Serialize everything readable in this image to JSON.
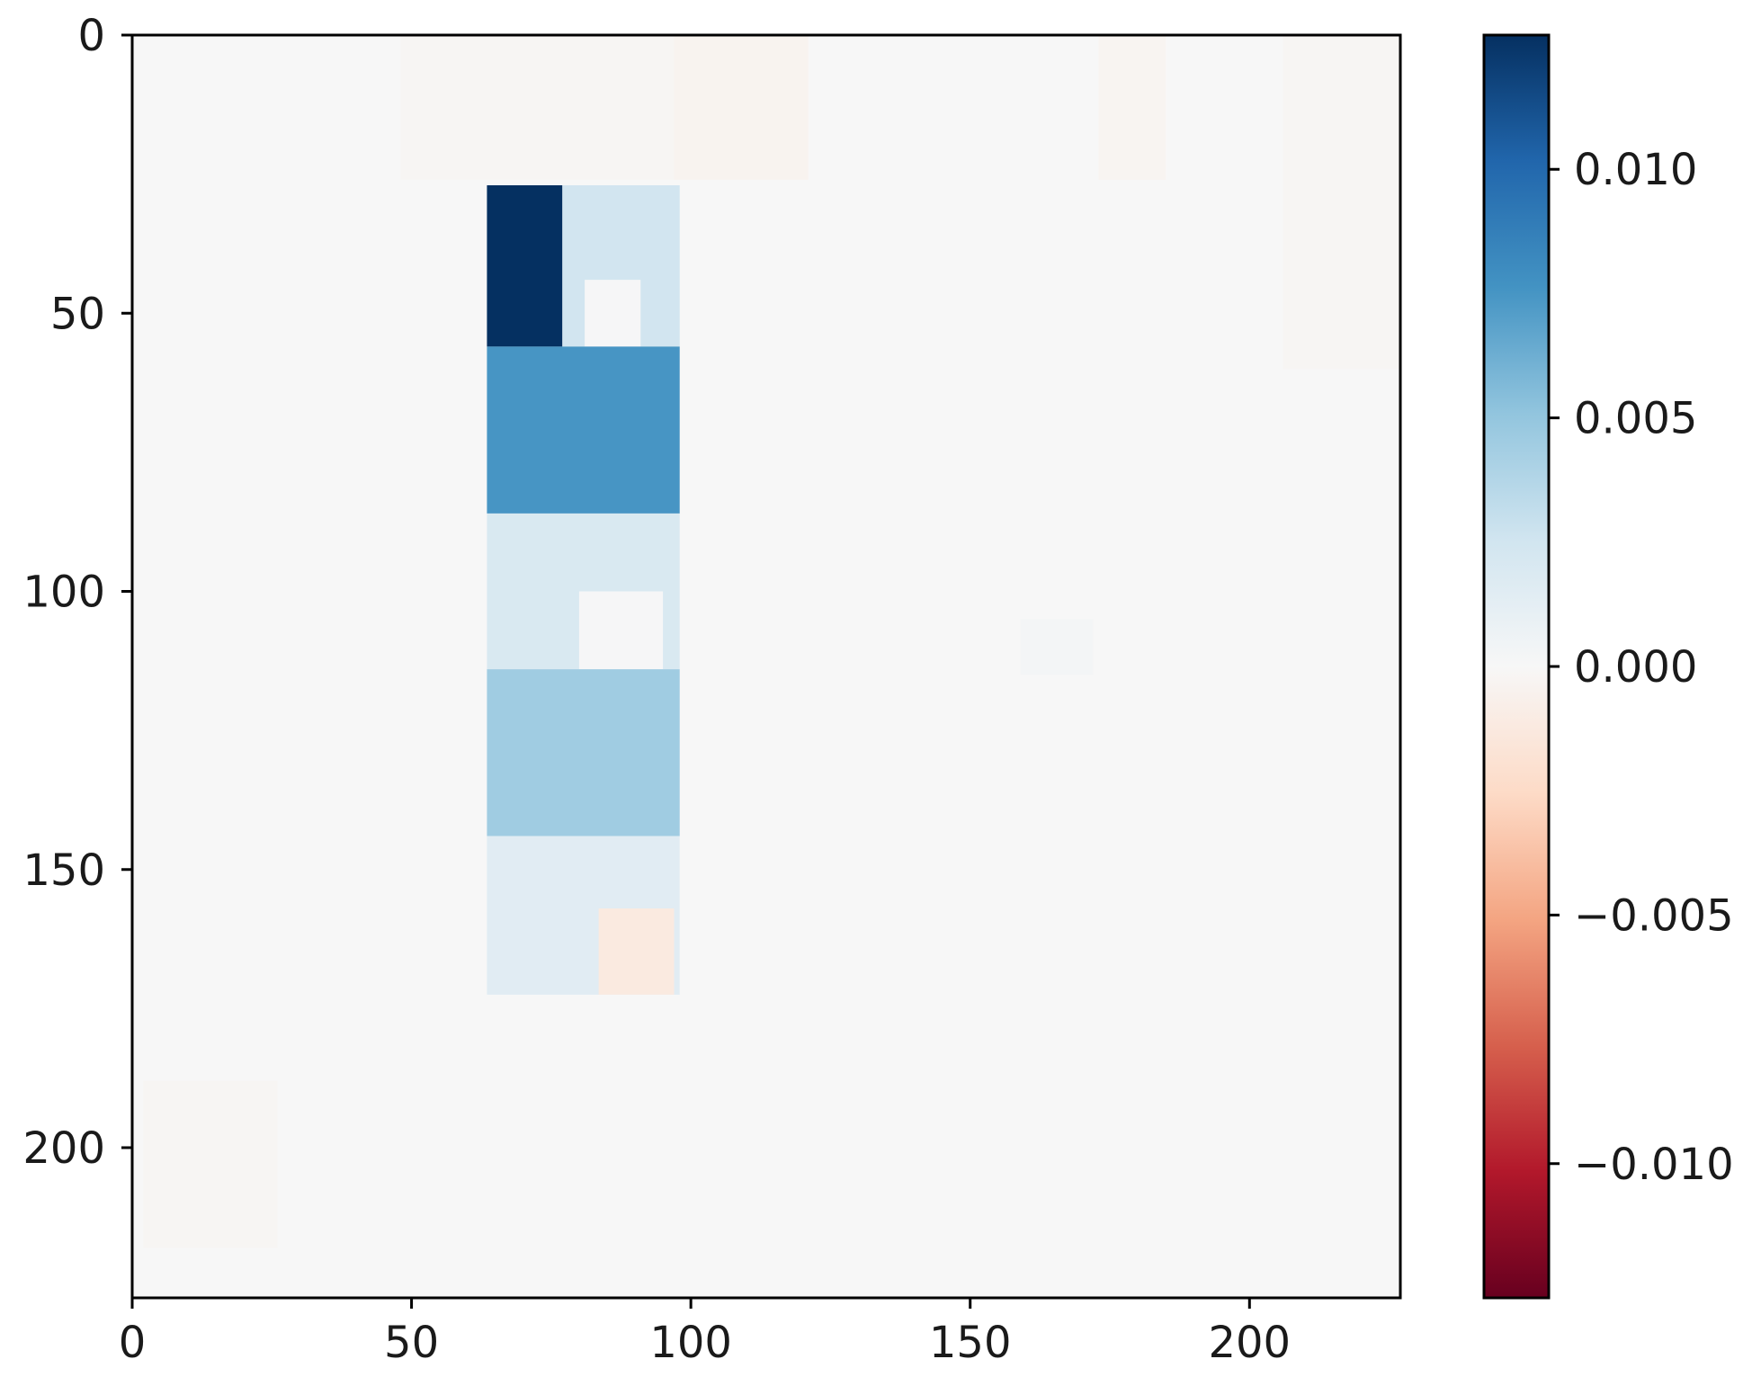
{
  "chart_data": {
    "type": "heatmap",
    "title": "",
    "xlabel": "",
    "ylabel": "",
    "xlim": [
      0,
      227
    ],
    "ylim": [
      227,
      0
    ],
    "x_ticks": [
      "0",
      "50",
      "100",
      "150",
      "200"
    ],
    "y_ticks": [
      "0",
      "50",
      "100",
      "150",
      "200"
    ],
    "background_value": 0.0,
    "colormap": {
      "name": "RdBu",
      "vmin": -0.0127,
      "vmax": 0.0127,
      "stops": [
        "#67001f",
        "#b2182b",
        "#d6604d",
        "#f4a582",
        "#fddbc7",
        "#f7f7f7",
        "#d1e5f0",
        "#92c5de",
        "#4393c3",
        "#2166ac",
        "#053061"
      ]
    },
    "colorbar": {
      "ticks": [
        "−0.010",
        "−0.005",
        "0.000",
        "0.005",
        "0.010"
      ],
      "tick_values": [
        -0.01,
        -0.005,
        0.0,
        0.005,
        0.01
      ]
    },
    "regions": [
      {
        "name": "faint-warm-top-1",
        "x": [
          48,
          97
        ],
        "y": [
          0,
          26
        ],
        "value": -0.0002
      },
      {
        "name": "faint-warm-top-2",
        "x": [
          97,
          121
        ],
        "y": [
          0,
          26
        ],
        "value": -0.0004
      },
      {
        "name": "faint-warm-top-3",
        "x": [
          173,
          185
        ],
        "y": [
          0,
          26
        ],
        "value": -0.0003
      },
      {
        "name": "faint-warm-right",
        "x": [
          206,
          227
        ],
        "y": [
          0,
          60
        ],
        "value": -0.0002
      },
      {
        "name": "faint-warm-bottom-left",
        "x": [
          2,
          26
        ],
        "y": [
          188,
          218
        ],
        "value": -0.0002
      },
      {
        "name": "faint-cool-mid",
        "x": [
          159,
          172
        ],
        "y": [
          105,
          115
        ],
        "value": 0.0003
      },
      {
        "name": "band-1-darkest",
        "x": [
          63.5,
          77
        ],
        "y": [
          27,
          56
        ],
        "value": 0.0127
      },
      {
        "name": "band-1-light",
        "x": [
          77,
          98
        ],
        "y": [
          27,
          56
        ],
        "value": 0.0025
      },
      {
        "name": "band-1-notch",
        "x": [
          81,
          91
        ],
        "y": [
          44,
          56
        ],
        "value": 0.0001
      },
      {
        "name": "band-2-strong",
        "x": [
          63.5,
          98
        ],
        "y": [
          56,
          86
        ],
        "value": 0.0075
      },
      {
        "name": "band-3-light",
        "x": [
          63.5,
          98
        ],
        "y": [
          86,
          114
        ],
        "value": 0.002
      },
      {
        "name": "band-3-notch",
        "x": [
          80,
          95
        ],
        "y": [
          100,
          114
        ],
        "value": 0.0001
      },
      {
        "name": "band-4-medium",
        "x": [
          63.5,
          98
        ],
        "y": [
          114,
          144
        ],
        "value": 0.0045
      },
      {
        "name": "band-5-pale",
        "x": [
          63.5,
          98
        ],
        "y": [
          144,
          172.5
        ],
        "value": 0.0015
      },
      {
        "name": "band-5-warm-notch",
        "x": [
          83.5,
          97
        ],
        "y": [
          157,
          172.5
        ],
        "value": -0.0012
      }
    ]
  }
}
